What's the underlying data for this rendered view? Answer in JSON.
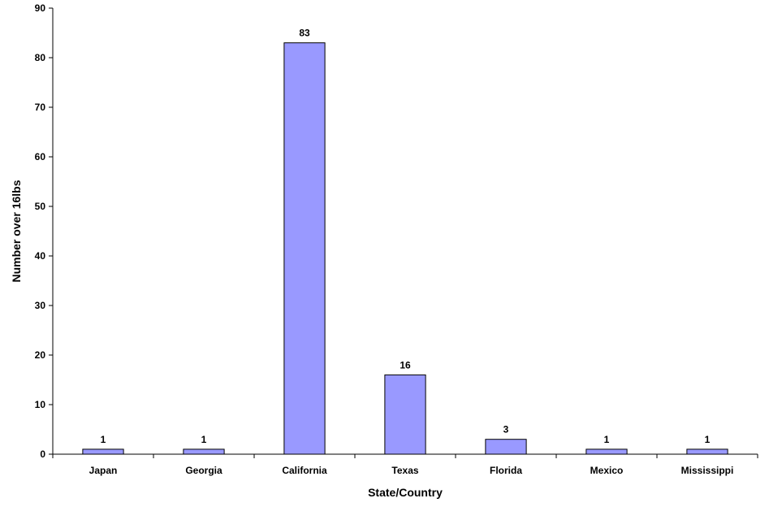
{
  "chart_data": {
    "type": "bar",
    "categories": [
      "Japan",
      "Georgia",
      "California",
      "Texas",
      "Florida",
      "Mexico",
      "Mississippi"
    ],
    "values": [
      1,
      1,
      83,
      16,
      3,
      1,
      1
    ],
    "data_labels": [
      "1",
      "1",
      "83",
      "16",
      "3",
      "1",
      "1"
    ],
    "title": "",
    "xlabel": "State/Country",
    "ylabel": "Number over 16lbs",
    "ylim": [
      0,
      90
    ],
    "yticks": [
      0,
      10,
      20,
      30,
      40,
      50,
      60,
      70,
      80,
      90
    ],
    "grid": false,
    "legend": "none",
    "bar_color": "#9999ff",
    "bar_edge_color": "#000000"
  }
}
